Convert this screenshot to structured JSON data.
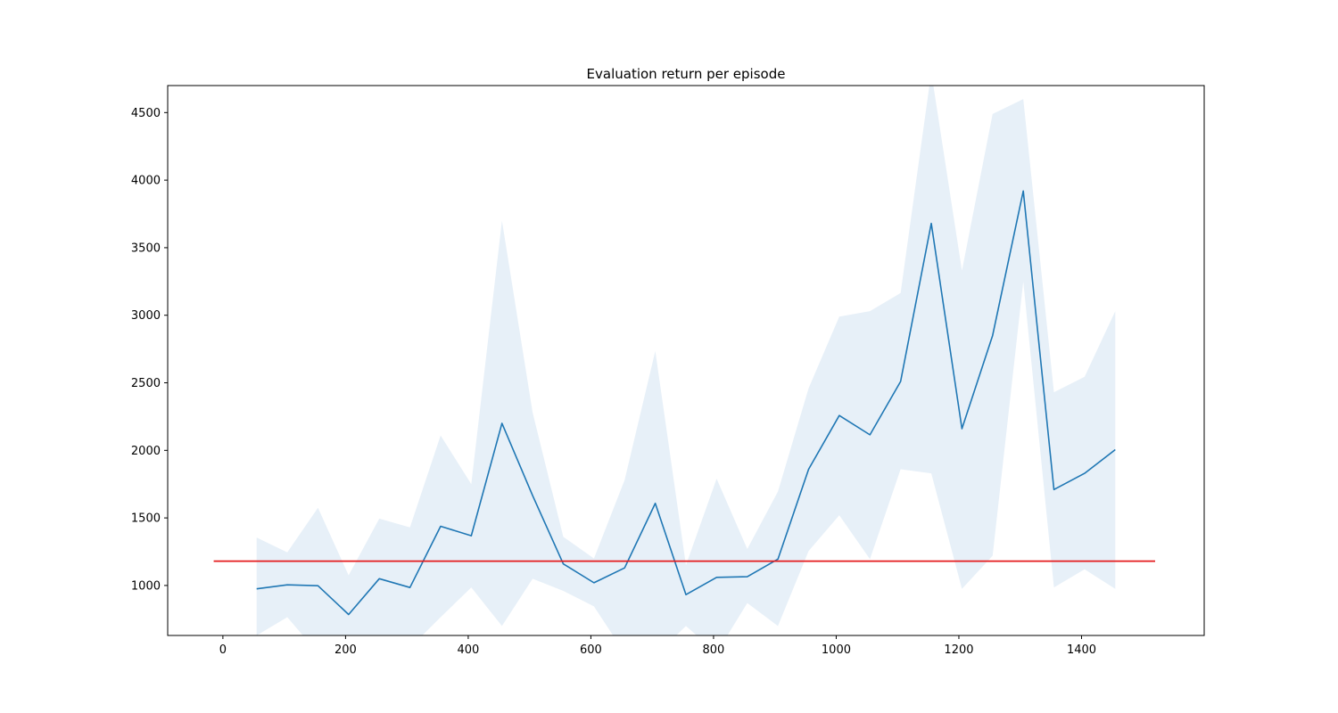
{
  "chart_data": {
    "type": "line",
    "title": "Evaluation return per episode",
    "xlabel": "",
    "ylabel": "",
    "xlim": [
      -90,
      1600
    ],
    "ylim": [
      630,
      4700
    ],
    "xticks": [
      0,
      200,
      400,
      600,
      800,
      1000,
      1200,
      1400
    ],
    "yticks": [
      1000,
      1500,
      2000,
      2500,
      3000,
      3500,
      4000,
      4500
    ],
    "grid": false,
    "legend": "none",
    "series": [
      {
        "kind": "line",
        "color": "#1f77b4",
        "x": [
          55,
          105,
          155,
          205,
          255,
          305,
          355,
          405,
          455,
          505,
          555,
          605,
          655,
          705,
          755,
          805,
          855,
          905,
          955,
          1005,
          1055,
          1105,
          1155,
          1205,
          1255,
          1305,
          1355,
          1405,
          1455
        ],
        "y": [
          975,
          1005,
          998,
          785,
          1050,
          985,
          1438,
          1368,
          2200,
          1665,
          1160,
          1020,
          1130,
          1608,
          932,
          1060,
          1065,
          1195,
          1860,
          2258,
          2115,
          2510,
          3680,
          2160,
          2850,
          3920,
          1710,
          1830,
          2005
        ],
        "band_upper": [
          1355,
          1245,
          1575,
          1075,
          1495,
          1430,
          2110,
          1750,
          3700,
          2280,
          1360,
          1200,
          1780,
          2735,
          1150,
          1790,
          1270,
          1695,
          2460,
          2990,
          3030,
          3165,
          4800,
          3330,
          4490,
          4600,
          2430,
          2545,
          3030
        ],
        "band_lower": [
          630,
          765,
          500,
          500,
          610,
          540,
          765,
          985,
          700,
          1050,
          960,
          845,
          500,
          480,
          700,
          500,
          870,
          700,
          1255,
          1520,
          1195,
          1860,
          1830,
          975,
          1220,
          3250,
          985,
          1120,
          975
        ],
        "band_color": "#e7f0f8"
      },
      {
        "kind": "hline",
        "color": "#e41a1c",
        "y": 1180,
        "x_start": -15,
        "x_end": 1520
      }
    ]
  }
}
